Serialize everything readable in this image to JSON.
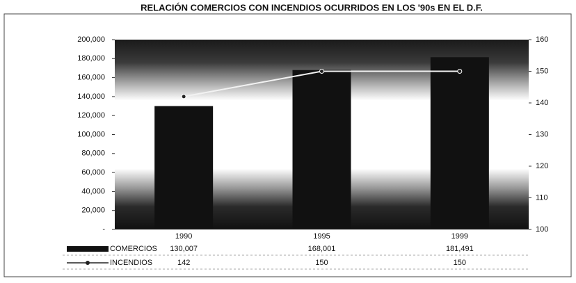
{
  "chart_data": {
    "type": "bar",
    "title": "RELACIÓN COMERCIOS CON INCENDIOS OCURRIDOS EN LOS '90s EN EL D.F.",
    "categories": [
      "1990",
      "1995",
      "1999"
    ],
    "series": [
      {
        "name": "COMERCIOS",
        "type": "bar",
        "color": "#111111",
        "values": [
          130007,
          168001,
          181491
        ],
        "value_labels": [
          "130,007",
          "168,001",
          "181,491"
        ]
      },
      {
        "name": "INCENDIOS",
        "type": "line",
        "color": "#222222",
        "axis": "y2",
        "values": [
          142,
          150,
          150
        ]
      }
    ],
    "ylim": [
      0,
      200000
    ],
    "yticks": [
      {
        "value": 0,
        "label": "-"
      },
      {
        "value": 20000,
        "label": "20,000"
      },
      {
        "value": 40000,
        "label": "40,000"
      },
      {
        "value": 60000,
        "label": "60,000"
      },
      {
        "value": 80000,
        "label": "80,000"
      },
      {
        "value": 100000,
        "label": "100,000"
      },
      {
        "value": 120000,
        "label": "120,000"
      },
      {
        "value": 140000,
        "label": "140,000"
      },
      {
        "value": 160000,
        "label": "160,000"
      },
      {
        "value": 180000,
        "label": "180,000"
      },
      {
        "value": 200000,
        "label": "200,000"
      }
    ],
    "y2lim": [
      100,
      160
    ],
    "y2ticks": [
      100,
      110,
      120,
      130,
      140,
      150,
      160
    ]
  }
}
